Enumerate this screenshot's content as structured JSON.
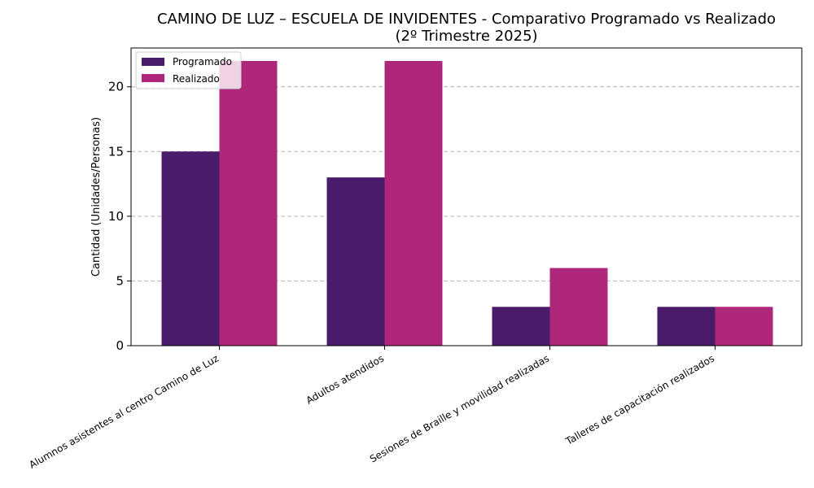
{
  "chart_data": {
    "type": "bar",
    "title_line1": "CAMINO DE LUZ – ESCUELA DE INVIDENTES - Comparativo Programado vs Realizado",
    "title_line2": "(2º Trimestre 2025)",
    "xlabel": "",
    "ylabel": "Cantidad (Unidades/Personas)",
    "ylim": [
      0,
      23
    ],
    "yticks": [
      0,
      5,
      10,
      15,
      20
    ],
    "grid": "y-dashed",
    "legend_position": "top-left",
    "categories": [
      "Alumnos asistentes al centro Camino de Luz",
      "Adultos atendidos",
      "Sesiones de Braille y movilidad realizadas",
      "Talleres de capacitación realizados"
    ],
    "series": [
      {
        "name": "Programado",
        "color": "#4a1a6b",
        "values": [
          15,
          13,
          3,
          3
        ]
      },
      {
        "name": "Realizado",
        "color": "#ae277a",
        "values": [
          22,
          22,
          6,
          3
        ]
      }
    ]
  }
}
